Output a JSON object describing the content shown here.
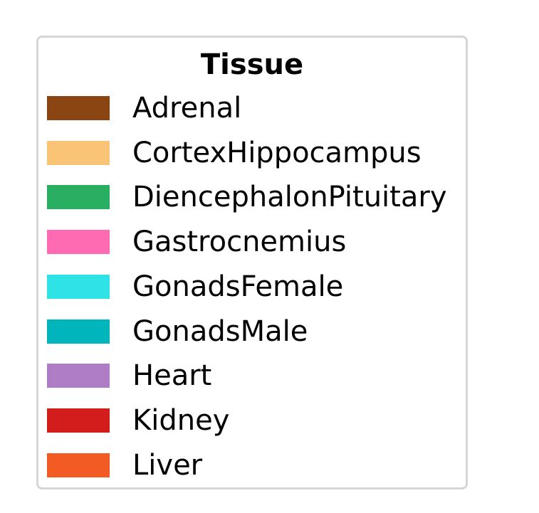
{
  "chart_data": {
    "type": "legend",
    "legend": {
      "title": "Tissue",
      "entries": [
        {
          "label": "Adrenal",
          "color": "#8B4513"
        },
        {
          "label": "CortexHippocampus",
          "color": "#F9C475"
        },
        {
          "label": "DiencephalonPituitary",
          "color": "#2AAF62"
        },
        {
          "label": "Gastrocnemius",
          "color": "#FF6BB3"
        },
        {
          "label": "GonadsFemale",
          "color": "#2FE2E6"
        },
        {
          "label": "GonadsMale",
          "color": "#00B6BC"
        },
        {
          "label": "Heart",
          "color": "#AF7CC6"
        },
        {
          "label": "Kidney",
          "color": "#D31D1D"
        },
        {
          "label": "Liver",
          "color": "#F35B24"
        }
      ]
    }
  }
}
